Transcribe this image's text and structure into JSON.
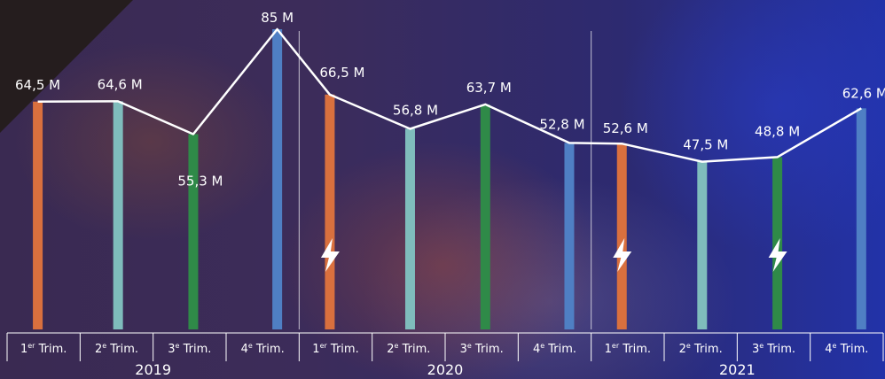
{
  "chart_data": {
    "type": "bar",
    "years": [
      "2019",
      "2020",
      "2021"
    ],
    "quarters": [
      {
        "base": "1",
        "sup": "er",
        "rest": " Trim."
      },
      {
        "base": "2",
        "sup": "e",
        "rest": " Trim."
      },
      {
        "base": "3",
        "sup": "e",
        "rest": " Trim."
      },
      {
        "base": "4",
        "sup": "e",
        "rest": " Trim."
      }
    ],
    "values": [
      64.5,
      64.6,
      55.3,
      85,
      66.5,
      56.8,
      63.7,
      52.8,
      52.6,
      47.5,
      48.8,
      62.6
    ],
    "value_labels": [
      "64,5 M",
      "64,6 M",
      "55,3 M",
      "85 M",
      "66,5 M",
      "56,8 M",
      "63,7 M",
      "52,8 M",
      "52,6 M",
      "47,5 M",
      "48,8 M",
      "62,6 M"
    ],
    "bar_colors": [
      "#d9703e",
      "#7fbcbc",
      "#2f8a48",
      "#4f7fc4"
    ],
    "line_color": "#ffffff",
    "lightning_after_bars": [
      4,
      8,
      10
    ],
    "ylim": [
      0,
      85
    ]
  }
}
